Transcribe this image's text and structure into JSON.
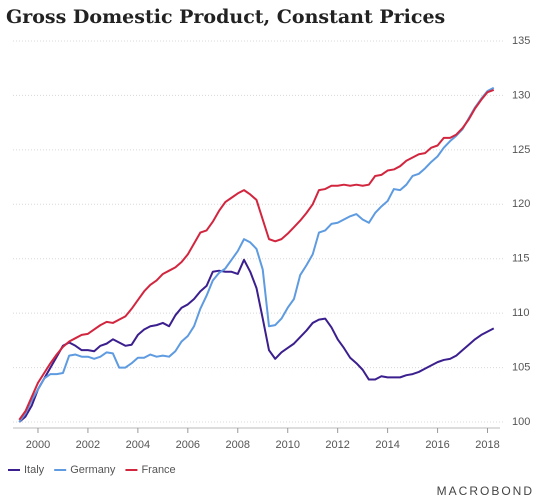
{
  "chart_data": {
    "type": "line",
    "title": "Gross Domestic Product, Constant Prices",
    "source": "MACROBOND",
    "x": [
      1999.25,
      1999.5,
      1999.75,
      2000,
      2000.25,
      2000.5,
      2000.75,
      2001,
      2001.25,
      2001.5,
      2001.75,
      2002,
      2002.25,
      2002.5,
      2002.75,
      2003,
      2003.25,
      2003.5,
      2003.75,
      2004,
      2004.25,
      2004.5,
      2004.75,
      2005,
      2005.25,
      2005.5,
      2005.75,
      2006,
      2006.25,
      2006.5,
      2006.75,
      2007,
      2007.25,
      2007.5,
      2007.75,
      2008,
      2008.25,
      2008.5,
      2008.75,
      2009,
      2009.25,
      2009.5,
      2009.75,
      2010,
      2010.25,
      2010.5,
      2010.75,
      2011,
      2011.25,
      2011.5,
      2011.75,
      2012,
      2012.25,
      2012.5,
      2012.75,
      2013,
      2013.25,
      2013.5,
      2013.75,
      2014,
      2014.25,
      2014.5,
      2014.75,
      2015,
      2015.25,
      2015.5,
      2015.75,
      2016,
      2016.25,
      2016.5,
      2016.75,
      2017,
      2017.25,
      2017.5,
      2017.75,
      2018,
      2018.25
    ],
    "series": [
      {
        "name": "Italy",
        "color": "#3b1f8e",
        "values": [
          100,
          100.5,
          101.5,
          103,
          104,
          105,
          106,
          107,
          107.3,
          107,
          106.6,
          106.6,
          106.5,
          107,
          107.2,
          107.6,
          107.3,
          107,
          107.1,
          108,
          108.5,
          108.8,
          108.9,
          109.1,
          108.8,
          109.8,
          110.5,
          110.8,
          111.3,
          112,
          112.5,
          113.8,
          113.9,
          113.8,
          113.8,
          113.6,
          114.9,
          113.8,
          112.3,
          109.5,
          106.6,
          105.8,
          106.4,
          106.8,
          107.2,
          107.8,
          108.4,
          109.1,
          109.4,
          109.5,
          108.7,
          107.6,
          106.8,
          105.9,
          105.4,
          104.8,
          103.9,
          103.9,
          104.2,
          104.1,
          104.1,
          104.1,
          104.3,
          104.4,
          104.6,
          104.9,
          105.2,
          105.5,
          105.7,
          105.8,
          106.1,
          106.6,
          107.1,
          107.6,
          108,
          108.3,
          108.6
        ]
      },
      {
        "name": "Germany",
        "color": "#5e9be0",
        "values": [
          100,
          100.8,
          102,
          103,
          104,
          104.4,
          104.4,
          104.5,
          106.1,
          106.2,
          106,
          106,
          105.8,
          106,
          106.4,
          106.3,
          105,
          105,
          105.4,
          105.9,
          105.9,
          106.2,
          106,
          106.1,
          106,
          106.5,
          107.4,
          107.9,
          108.8,
          110.4,
          111.6,
          113,
          113.7,
          114.1,
          114.9,
          115.7,
          116.8,
          116.5,
          115.9,
          114,
          108.8,
          108.9,
          109.5,
          110.5,
          111.3,
          113.5,
          114.4,
          115.4,
          117.4,
          117.6,
          118.2,
          118.3,
          118.6,
          118.9,
          119.1,
          118.6,
          118.3,
          119.2,
          119.8,
          120.3,
          121.4,
          121.3,
          121.8,
          122.6,
          122.8,
          123.3,
          123.9,
          124.4,
          125.2,
          125.8,
          126.3,
          126.9,
          127.9,
          128.9,
          129.7,
          130.4,
          130.7
        ]
      },
      {
        "name": "France",
        "color": "#d2263f",
        "values": [
          100.2,
          101,
          102.3,
          103.6,
          104.5,
          105.4,
          106.2,
          106.9,
          107.4,
          107.7,
          108,
          108.1,
          108.5,
          108.9,
          109.2,
          109.1,
          109.4,
          109.7,
          110.4,
          111.2,
          112,
          112.6,
          113,
          113.6,
          113.9,
          114.2,
          114.7,
          115.4,
          116.4,
          117.4,
          117.6,
          118.4,
          119.4,
          120.2,
          120.6,
          121,
          121.3,
          120.9,
          120.4,
          118.6,
          116.8,
          116.6,
          116.8,
          117.3,
          117.9,
          118.5,
          119.2,
          120,
          121.3,
          121.4,
          121.7,
          121.7,
          121.8,
          121.7,
          121.8,
          121.7,
          121.8,
          122.6,
          122.7,
          123.1,
          123.2,
          123.5,
          124,
          124.3,
          124.6,
          124.7,
          125.2,
          125.4,
          126.1,
          126.1,
          126.4,
          127,
          127.8,
          128.8,
          129.6,
          130.3,
          130.5
        ]
      }
    ],
    "xlim": [
      1999,
      2018.5
    ],
    "xticks": [
      2000,
      2002,
      2004,
      2006,
      2008,
      2010,
      2012,
      2014,
      2016,
      2018
    ],
    "ylim": [
      100,
      135
    ],
    "yticks": [
      100,
      105,
      110,
      115,
      120,
      125,
      130,
      135
    ],
    "grid": true
  }
}
